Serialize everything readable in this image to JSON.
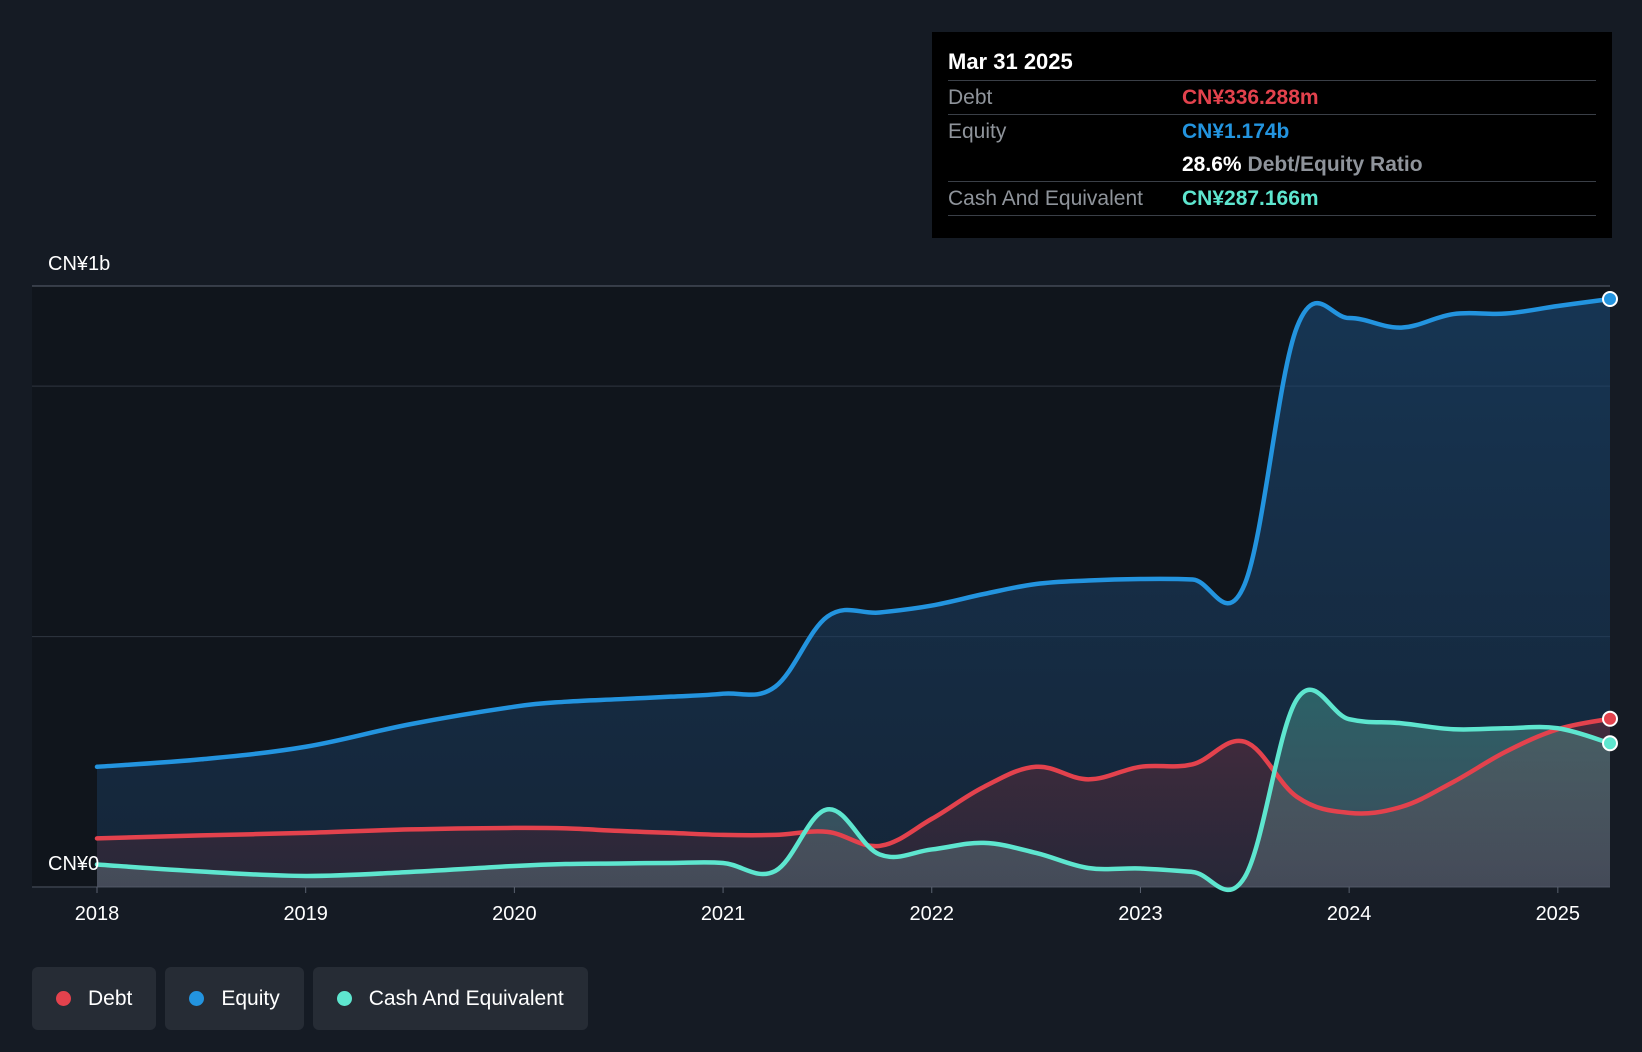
{
  "chart_data": {
    "type": "area",
    "ylabel_top": "CN¥1b",
    "ylabel_bottom": "CN¥0",
    "ylim": [
      0,
      1200
    ],
    "xlim": [
      2018.0,
      2025.25
    ],
    "x_ticks": [
      "2018",
      "2019",
      "2020",
      "2021",
      "2022",
      "2023",
      "2024",
      "2025"
    ],
    "grid": true,
    "colors": {
      "debt": "#e3424d",
      "equity": "#2394df",
      "cash": "#5ee6cf"
    },
    "series": [
      {
        "name": "Debt",
        "key": "debt",
        "x": [
          2018.0,
          2018.5,
          2019.0,
          2019.5,
          2020.0,
          2020.25,
          2020.5,
          2020.75,
          2021.0,
          2021.25,
          2021.5,
          2021.75,
          2022.0,
          2022.25,
          2022.5,
          2022.75,
          2023.0,
          2023.25,
          2023.5,
          2023.75,
          2024.0,
          2024.25,
          2024.5,
          2024.75,
          2025.0,
          2025.25
        ],
        "values": [
          97,
          103,
          108,
          115,
          118,
          117,
          112,
          108,
          104,
          104,
          110,
          82,
          136,
          200,
          240,
          215,
          240,
          245,
          290,
          180,
          148,
          160,
          210,
          270,
          315,
          336
        ]
      },
      {
        "name": "Equity",
        "key": "equity",
        "x": [
          2018.0,
          2018.5,
          2019.0,
          2019.5,
          2020.0,
          2020.25,
          2020.5,
          2020.75,
          2021.0,
          2021.25,
          2021.5,
          2021.75,
          2022.0,
          2022.25,
          2022.5,
          2022.75,
          2023.0,
          2023.25,
          2023.5,
          2023.75,
          2024.0,
          2024.25,
          2024.5,
          2024.75,
          2025.0,
          2025.25
        ],
        "values": [
          240,
          255,
          280,
          325,
          360,
          370,
          375,
          380,
          386,
          400,
          540,
          548,
          562,
          585,
          605,
          612,
          615,
          614,
          605,
          1118,
          1136,
          1117,
          1144,
          1145,
          1160,
          1174
        ]
      },
      {
        "name": "Cash And Equivalent",
        "key": "cash",
        "x": [
          2018.0,
          2018.5,
          2019.0,
          2019.5,
          2020.0,
          2020.25,
          2020.5,
          2020.75,
          2021.0,
          2021.25,
          2021.5,
          2021.75,
          2022.0,
          2022.25,
          2022.5,
          2022.75,
          2023.0,
          2023.25,
          2023.5,
          2023.75,
          2024.0,
          2024.25,
          2024.5,
          2024.75,
          2025.0,
          2025.25
        ],
        "values": [
          45,
          31,
          22,
          30,
          42,
          46,
          47,
          48,
          48,
          32,
          155,
          65,
          75,
          88,
          68,
          38,
          37,
          30,
          20,
          375,
          335,
          327,
          315,
          317,
          317,
          287
        ]
      }
    ]
  },
  "tooltip": {
    "date": "Mar 31 2025",
    "debt_label": "Debt",
    "debt_value": "CN¥336.288m",
    "equity_label": "Equity",
    "equity_value": "CN¥1.174b",
    "ratio_value": "28.6%",
    "ratio_label": "Debt/Equity Ratio",
    "cash_label": "Cash And Equivalent",
    "cash_value": "CN¥287.166m"
  },
  "legend": [
    {
      "label": "Debt",
      "key": "debt"
    },
    {
      "label": "Equity",
      "key": "equity"
    },
    {
      "label": "Cash And Equivalent",
      "key": "cash"
    }
  ]
}
